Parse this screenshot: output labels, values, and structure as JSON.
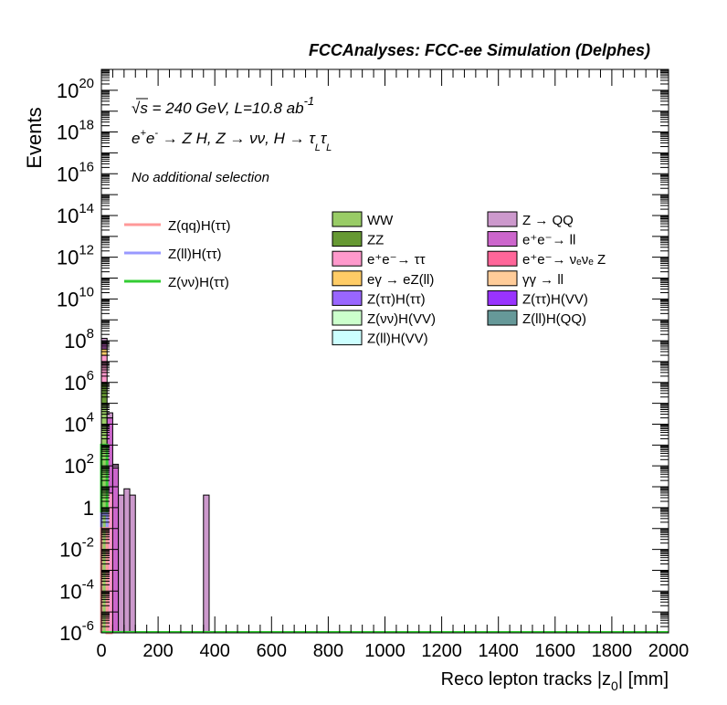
{
  "header_title": "FCCAnalyses: FCC-ee Simulation (Delphes)",
  "annotations": {
    "energy_line": "√s = 240 GeV, L=10.8 ab",
    "energy_sup": "-1",
    "process_line": "e⁺e⁻ → Z H, Z → νν, H → τ_L τ_L",
    "process_parts": [
      "e",
      "+",
      "e",
      "-",
      " → Z H, Z  → νν, H → τ",
      "L",
      "τ",
      "L"
    ],
    "selection": "No additional selection"
  },
  "axes": {
    "xlabel": "Reco lepton tracks |z",
    "xlabel_sub": "0",
    "xlabel_tail": "| [mm]",
    "ylabel": "Events"
  },
  "colors": {
    "frame": "#000000",
    "signal_qq": "#ff9999",
    "signal_ll": "#9999ff",
    "signal_vv": "#33cc33",
    "WW": "#99cc66",
    "ZZ": "#669933",
    "ee_tautau": "#ff99cc",
    "egamma_eZll": "#ffcc66",
    "Ztautau_Htautau": "#9966ff",
    "Zvv_HVV": "#ccffcc",
    "Zll_HVV": "#ccffff",
    "Z_QQ": "#cc99cc",
    "ee_ll": "#cc66cc",
    "ee_nuenue_Z": "#ff6699",
    "gammagamma_ll": "#ffcc99",
    "Ztautau_HVV": "#9933ff",
    "Zll_HQQ": "#669999"
  },
  "legend_signals": [
    {
      "label": "Z(qq)H(ττ)",
      "color": "#ff9999"
    },
    {
      "label": "Z(ll)H(ττ)",
      "color": "#9999ff"
    },
    {
      "label": "Z(νν)H(ττ)",
      "color": "#33cc33"
    }
  ],
  "legend_backgrounds_col1": [
    {
      "label": "WW",
      "color": "#99cc66"
    },
    {
      "label": "ZZ",
      "color": "#669933"
    },
    {
      "label": "e⁺e⁻→ ττ",
      "color": "#ff99cc"
    },
    {
      "label": "eγ → eZ(ll)",
      "color": "#ffcc66"
    },
    {
      "label": "Z(ττ)H(ττ)",
      "color": "#9966ff"
    },
    {
      "label": "Z(νν)H(VV)",
      "color": "#ccffcc"
    },
    {
      "label": "Z(ll)H(VV)",
      "color": "#ccffff"
    }
  ],
  "legend_backgrounds_col2": [
    {
      "label": "Z → QQ",
      "color": "#cc99cc"
    },
    {
      "label": "e⁺e⁻→ ll",
      "color": "#cc66cc"
    },
    {
      "label": "e⁺e⁻→ νₑνₑ Z",
      "color": "#ff6699"
    },
    {
      "label": "γγ → ll",
      "color": "#ffcc99"
    },
    {
      "label": "Z(ττ)H(VV)",
      "color": "#9933ff"
    },
    {
      "label": "Z(ll)H(QQ)",
      "color": "#669999"
    }
  ],
  "chart_data": {
    "type": "bar",
    "title": "FCCAnalyses: FCC-ee Simulation (Delphes)",
    "xlabel": "Reco lepton tracks |z0| [mm]",
    "ylabel": "Events",
    "xlim": [
      0,
      2000
    ],
    "ylim": [
      1e-06,
      1e+21
    ],
    "yscale": "log",
    "bin_width": 20,
    "x_ticks": [
      0,
      200,
      400,
      600,
      800,
      1000,
      1200,
      1400,
      1600,
      1800,
      2000
    ],
    "y_ticks": [
      {
        "value": 1e-06,
        "mant": "10",
        "exp": "-6"
      },
      {
        "value": 0.0001,
        "mant": "10",
        "exp": "-4"
      },
      {
        "value": 0.01,
        "mant": "10",
        "exp": "-2"
      },
      {
        "value": 1,
        "mant": "1",
        "exp": ""
      },
      {
        "value": 100.0,
        "mant": "10",
        "exp": "2"
      },
      {
        "value": 10000.0,
        "mant": "10",
        "exp": "4"
      },
      {
        "value": 1000000.0,
        "mant": "10",
        "exp": "6"
      },
      {
        "value": 100000000.0,
        "mant": "10",
        "exp": "8"
      },
      {
        "value": 10000000000.0,
        "mant": "10",
        "exp": "10"
      },
      {
        "value": 1000000000000.0,
        "mant": "10",
        "exp": "12"
      },
      {
        "value": 100000000000000.0,
        "mant": "10",
        "exp": "14"
      },
      {
        "value": 1e+16,
        "mant": "10",
        "exp": "16"
      },
      {
        "value": 1e+18,
        "mant": "10",
        "exp": "18"
      },
      {
        "value": 1e+20,
        "mant": "10",
        "exp": "20"
      }
    ],
    "stack_bins": [
      {
        "x": 0,
        "segments": [
          {
            "name": "WW",
            "top": 100000.0
          },
          {
            "name": "ZZ",
            "top": 1000000.0
          },
          {
            "name": "ee_tautau",
            "top": 20000000.0
          },
          {
            "name": "egamma_eZll",
            "top": 40000000.0
          },
          {
            "name": "ee_ll",
            "top": 80000000.0
          },
          {
            "name": "Z_QQ",
            "top": 130000000.0
          }
        ]
      },
      {
        "x": 20,
        "segments": [
          {
            "name": "ee_tautau",
            "top": 5
          },
          {
            "name": "ee_ll",
            "top": 20000.0
          },
          {
            "name": "Z_QQ",
            "top": 35000.0
          }
        ]
      },
      {
        "x": 40,
        "segments": [
          {
            "name": "ee_ll",
            "top": 80.0
          },
          {
            "name": "Z_QQ",
            "top": 120.0
          }
        ]
      },
      {
        "x": 60,
        "segments": [
          {
            "name": "Z_QQ",
            "top": 4
          }
        ]
      },
      {
        "x": 80,
        "segments": [
          {
            "name": "Z_QQ",
            "top": 8
          }
        ]
      },
      {
        "x": 100,
        "segments": [
          {
            "name": "Z_QQ",
            "top": 4
          }
        ]
      },
      {
        "x": 360,
        "segments": [
          {
            "name": "Z_QQ",
            "top": 4
          }
        ]
      }
    ],
    "signal_series": [
      {
        "name": "Z(νν)H(ττ)",
        "color_key": "signal_vv",
        "bins": [
          {
            "x": 0,
            "y": 1000.0
          },
          {
            "x": 20,
            "y": 1e-06
          }
        ]
      },
      {
        "name": "Z(ll)H(ττ)",
        "color_key": "signal_ll",
        "bins": [
          {
            "x": 0,
            "y": 0.5
          },
          {
            "x": 20,
            "y": 1e-06
          }
        ]
      },
      {
        "name": "Z(qq)H(ττ)",
        "color_key": "signal_qq",
        "bins": [
          {
            "x": 0,
            "y": 0.1
          },
          {
            "x": 20,
            "y": 1e-06
          }
        ]
      }
    ]
  }
}
